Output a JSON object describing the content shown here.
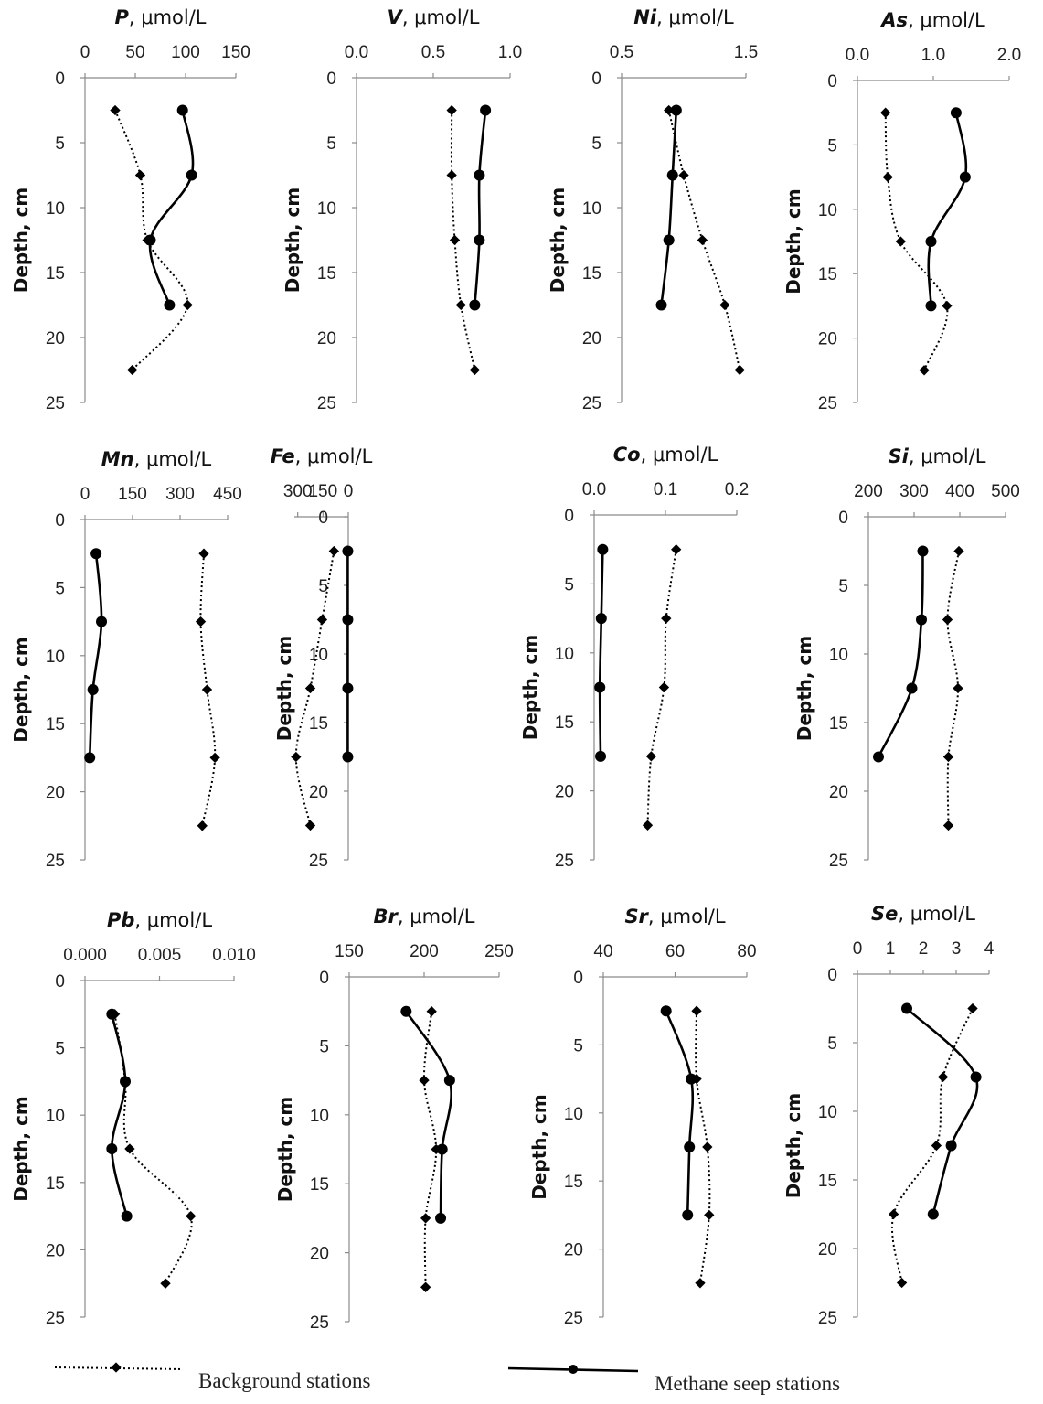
{
  "chart_data": [
    {
      "type": "line",
      "title": {
        "element": "P",
        "unit": "μmol/L"
      },
      "ylabel": "Depth, cm",
      "x_ticks": [
        "0",
        "50",
        "100",
        "150"
      ],
      "xlim": [
        0,
        150
      ],
      "y_ticks": [
        "0",
        "5",
        "10",
        "15",
        "20",
        "25"
      ],
      "ylim": [
        0,
        25
      ],
      "series": [
        {
          "name": "Background stations",
          "style": "dotted",
          "marker": "diamond",
          "points": [
            [
              30,
              2.5
            ],
            [
              55,
              7.5
            ],
            [
              62,
              12.5
            ],
            [
              102,
              17.5
            ],
            [
              47,
              22.5
            ]
          ]
        },
        {
          "name": "Methane seep stations",
          "style": "solid",
          "marker": "circle",
          "points": [
            [
              97,
              2.5
            ],
            [
              106,
              7.5
            ],
            [
              65,
              12.5
            ],
            [
              84,
              17.5
            ]
          ]
        }
      ]
    },
    {
      "type": "line",
      "title": {
        "element": "V",
        "unit": "μmol/L"
      },
      "ylabel": "Depth, cm",
      "x_ticks": [
        "0.0",
        "0.5",
        "1.0"
      ],
      "xlim": [
        0,
        1
      ],
      "y_ticks": [
        "0",
        "5",
        "10",
        "15",
        "20",
        "25"
      ],
      "ylim": [
        0,
        25
      ],
      "series": [
        {
          "name": "Background stations",
          "style": "dotted",
          "marker": "diamond",
          "points": [
            [
              0.62,
              2.5
            ],
            [
              0.62,
              7.5
            ],
            [
              0.64,
              12.5
            ],
            [
              0.68,
              17.5
            ],
            [
              0.77,
              22.5
            ]
          ]
        },
        {
          "name": "Methane seep stations",
          "style": "solid",
          "marker": "circle",
          "points": [
            [
              0.84,
              2.5
            ],
            [
              0.8,
              7.5
            ],
            [
              0.8,
              12.5
            ],
            [
              0.77,
              17.5
            ]
          ]
        }
      ]
    },
    {
      "type": "line",
      "title": {
        "element": "Ni",
        "unit": "μmol/L"
      },
      "ylabel": "Depth, cm",
      "x_ticks": [
        "0.5",
        "1.5"
      ],
      "xlim": [
        0.5,
        1.5
      ],
      "y_ticks": [
        "0",
        "5",
        "10",
        "15",
        "20",
        "25"
      ],
      "ylim": [
        0,
        25
      ],
      "series": [
        {
          "name": "Background stations",
          "style": "dotted",
          "marker": "diamond",
          "points": [
            [
              0.88,
              2.5
            ],
            [
              1.0,
              7.5
            ],
            [
              1.15,
              12.5
            ],
            [
              1.33,
              17.5
            ],
            [
              1.45,
              22.5
            ]
          ]
        },
        {
          "name": "Methane seep stations",
          "style": "solid",
          "marker": "circle",
          "points": [
            [
              0.94,
              2.5
            ],
            [
              0.91,
              7.5
            ],
            [
              0.88,
              12.5
            ],
            [
              0.82,
              17.5
            ]
          ]
        }
      ]
    },
    {
      "type": "line",
      "title": {
        "element": "As",
        "unit": "μmol/L"
      },
      "ylabel": "Depth, cm",
      "x_ticks": [
        "0.0",
        "1.0",
        "2.0"
      ],
      "xlim": [
        0,
        2
      ],
      "y_ticks": [
        "0",
        "5",
        "10",
        "15",
        "20",
        "25"
      ],
      "ylim": [
        0,
        25
      ],
      "series": [
        {
          "name": "Background stations",
          "style": "dotted",
          "marker": "diamond",
          "points": [
            [
              0.37,
              2.5
            ],
            [
              0.4,
              7.5
            ],
            [
              0.57,
              12.5
            ],
            [
              1.18,
              17.5
            ],
            [
              0.88,
              22.5
            ]
          ]
        },
        {
          "name": "Methane seep stations",
          "style": "solid",
          "marker": "circle",
          "points": [
            [
              1.3,
              2.5
            ],
            [
              1.42,
              7.5
            ],
            [
              0.97,
              12.5
            ],
            [
              0.97,
              17.5
            ]
          ]
        }
      ]
    },
    {
      "type": "line",
      "title": {
        "element": "Mn",
        "unit": "μmol/L"
      },
      "ylabel": "Depth, cm",
      "x_ticks": [
        "0",
        "150",
        "300",
        "450"
      ],
      "xlim": [
        0,
        450
      ],
      "y_ticks": [
        "0",
        "5",
        "10",
        "15",
        "20",
        "25"
      ],
      "ylim": [
        0,
        25
      ],
      "series": [
        {
          "name": "Background stations",
          "style": "dotted",
          "marker": "diamond",
          "points": [
            [
              375,
              2.5
            ],
            [
              365,
              7.5
            ],
            [
              385,
              12.5
            ],
            [
              410,
              17.5
            ],
            [
              370,
              22.5
            ]
          ]
        },
        {
          "name": "Methane seep stations",
          "style": "solid",
          "marker": "circle",
          "points": [
            [
              35,
              2.5
            ],
            [
              52,
              7.5
            ],
            [
              25,
              12.5
            ],
            [
              15,
              17.5
            ]
          ]
        }
      ]
    },
    {
      "type": "line",
      "title": {
        "element": "Fe",
        "unit": "μmol/L"
      },
      "ylabel": "Depth, cm",
      "x_ticks": [
        "0",
        "150",
        "300"
      ],
      "xlim": [
        0,
        320
      ],
      "y_ticks": [
        "0",
        "5",
        "10",
        "15",
        "20",
        "25"
      ],
      "ylim": [
        0,
        25
      ],
      "series": [
        {
          "name": "Background stations",
          "style": "dotted",
          "marker": "diamond",
          "points": [
            [
              85,
              2.5
            ],
            [
              155,
              7.5
            ],
            [
              225,
              12.5
            ],
            [
              310,
              17.5
            ],
            [
              225,
              22.5
            ]
          ]
        },
        {
          "name": "Methane seep stations",
          "style": "solid",
          "marker": "circle",
          "points": [
            [
              3,
              2.5
            ],
            [
              3,
              7.5
            ],
            [
              3,
              12.5
            ],
            [
              3,
              17.5
            ]
          ]
        }
      ]
    },
    {
      "type": "line",
      "title": {
        "element": "Co",
        "unit": "μmol/L"
      },
      "ylabel": "Depth, cm",
      "x_ticks": [
        "0.0",
        "0.1",
        "0.2"
      ],
      "xlim": [
        0,
        0.2
      ],
      "y_ticks": [
        "0",
        "5",
        "10",
        "15",
        "20",
        "25"
      ],
      "ylim": [
        0,
        25
      ],
      "series": [
        {
          "name": "Background stations",
          "style": "dotted",
          "marker": "diamond",
          "points": [
            [
              0.115,
              2.5
            ],
            [
              0.101,
              7.5
            ],
            [
              0.098,
              12.5
            ],
            [
              0.08,
              17.5
            ],
            [
              0.075,
              22.5
            ]
          ]
        },
        {
          "name": "Methane seep stations",
          "style": "solid",
          "marker": "circle",
          "points": [
            [
              0.012,
              2.5
            ],
            [
              0.01,
              7.5
            ],
            [
              0.008,
              12.5
            ],
            [
              0.009,
              17.5
            ]
          ]
        }
      ]
    },
    {
      "type": "line",
      "title": {
        "element": "Si",
        "unit": "μmol/L"
      },
      "ylabel": "Depth, cm",
      "x_ticks": [
        "200",
        "300",
        "400",
        "500"
      ],
      "xlim": [
        200,
        500
      ],
      "y_ticks": [
        "0",
        "5",
        "10",
        "15",
        "20",
        "25"
      ],
      "ylim": [
        0,
        25
      ],
      "series": [
        {
          "name": "Background stations",
          "style": "dotted",
          "marker": "diamond",
          "points": [
            [
              398,
              2.5
            ],
            [
              373,
              7.5
            ],
            [
              396,
              12.5
            ],
            [
              375,
              17.5
            ],
            [
              375,
              22.5
            ]
          ]
        },
        {
          "name": "Methane seep stations",
          "style": "solid",
          "marker": "circle",
          "points": [
            [
              319,
              2.5
            ],
            [
              316,
              7.5
            ],
            [
              295,
              12.5
            ],
            [
              222,
              17.5
            ]
          ]
        }
      ]
    },
    {
      "type": "line",
      "title": {
        "element": "Pb",
        "unit": "μmol/L"
      },
      "ylabel": "Depth, cm",
      "x_ticks": [
        "0.000",
        "0.005",
        "0.010"
      ],
      "xlim": [
        0,
        0.01
      ],
      "y_ticks": [
        "0",
        "5",
        "10",
        "15",
        "20",
        "25"
      ],
      "ylim": [
        0,
        25
      ],
      "series": [
        {
          "name": "Background stations",
          "style": "dotted",
          "marker": "diamond",
          "points": [
            [
              0.002,
              2.5
            ],
            [
              0.0027,
              7.5
            ],
            [
              0.003,
              12.5
            ],
            [
              0.0071,
              17.5
            ],
            [
              0.0054,
              22.5
            ]
          ]
        },
        {
          "name": "Methane seep stations",
          "style": "solid",
          "marker": "circle",
          "points": [
            [
              0.0018,
              2.5
            ],
            [
              0.0027,
              7.5
            ],
            [
              0.0018,
              12.5
            ],
            [
              0.0028,
              17.5
            ]
          ]
        }
      ]
    },
    {
      "type": "line",
      "title": {
        "element": "Br",
        "unit": "μmol/L"
      },
      "ylabel": "Depth, cm",
      "x_ticks": [
        "150",
        "200",
        "250"
      ],
      "xlim": [
        150,
        250
      ],
      "y_ticks": [
        "0",
        "5",
        "10",
        "15",
        "20",
        "25"
      ],
      "ylim": [
        0,
        25
      ],
      "series": [
        {
          "name": "Background stations",
          "style": "dotted",
          "marker": "diamond",
          "points": [
            [
              205,
              2.5
            ],
            [
              200,
              7.5
            ],
            [
              208,
              12.5
            ],
            [
              201,
              17.5
            ],
            [
              201,
              22.5
            ]
          ]
        },
        {
          "name": "Methane seep stations",
          "style": "solid",
          "marker": "circle",
          "points": [
            [
              188,
              2.5
            ],
            [
              217,
              7.5
            ],
            [
              212,
              12.5
            ],
            [
              211,
              17.5
            ]
          ]
        }
      ]
    },
    {
      "type": "line",
      "title": {
        "element": "Sr",
        "unit": "μmol/L"
      },
      "ylabel": "Depth, cm",
      "x_ticks": [
        "40",
        "60",
        "80"
      ],
      "xlim": [
        40,
        80
      ],
      "y_ticks": [
        "0",
        "5",
        "10",
        "15",
        "20",
        "25"
      ],
      "ylim": [
        0,
        25
      ],
      "series": [
        {
          "name": "Background stations",
          "style": "dotted",
          "marker": "diamond",
          "points": [
            [
              66,
              2.5
            ],
            [
              66,
              7.5
            ],
            [
              69,
              12.5
            ],
            [
              69.5,
              17.5
            ],
            [
              67,
              22.5
            ]
          ]
        },
        {
          "name": "Methane seep stations",
          "style": "solid",
          "marker": "circle",
          "points": [
            [
              57.5,
              2.5
            ],
            [
              64.5,
              7.5
            ],
            [
              64,
              12.5
            ],
            [
              63.5,
              17.5
            ]
          ]
        }
      ]
    },
    {
      "type": "line",
      "title": {
        "element": "Se",
        "unit": "μmol/L"
      },
      "ylabel": "Depth, cm",
      "x_ticks": [
        "0",
        "1",
        "2",
        "3",
        "4"
      ],
      "xlim": [
        0,
        4
      ],
      "y_ticks": [
        "0",
        "5",
        "10",
        "15",
        "20",
        "25"
      ],
      "ylim": [
        0,
        25
      ],
      "series": [
        {
          "name": "Background stations",
          "style": "dotted",
          "marker": "diamond",
          "points": [
            [
              3.5,
              2.5
            ],
            [
              2.6,
              7.5
            ],
            [
              2.4,
              12.5
            ],
            [
              1.1,
              17.5
            ],
            [
              1.35,
              22.5
            ]
          ]
        },
        {
          "name": "Methane seep stations",
          "style": "solid",
          "marker": "circle",
          "points": [
            [
              1.5,
              2.5
            ],
            [
              3.6,
              7.5
            ],
            [
              2.85,
              12.5
            ],
            [
              2.3,
              17.5
            ]
          ]
        }
      ]
    }
  ],
  "legend": {
    "background_label": "Background stations",
    "seep_label": "Methane seep stations",
    "placement": "bottom"
  }
}
